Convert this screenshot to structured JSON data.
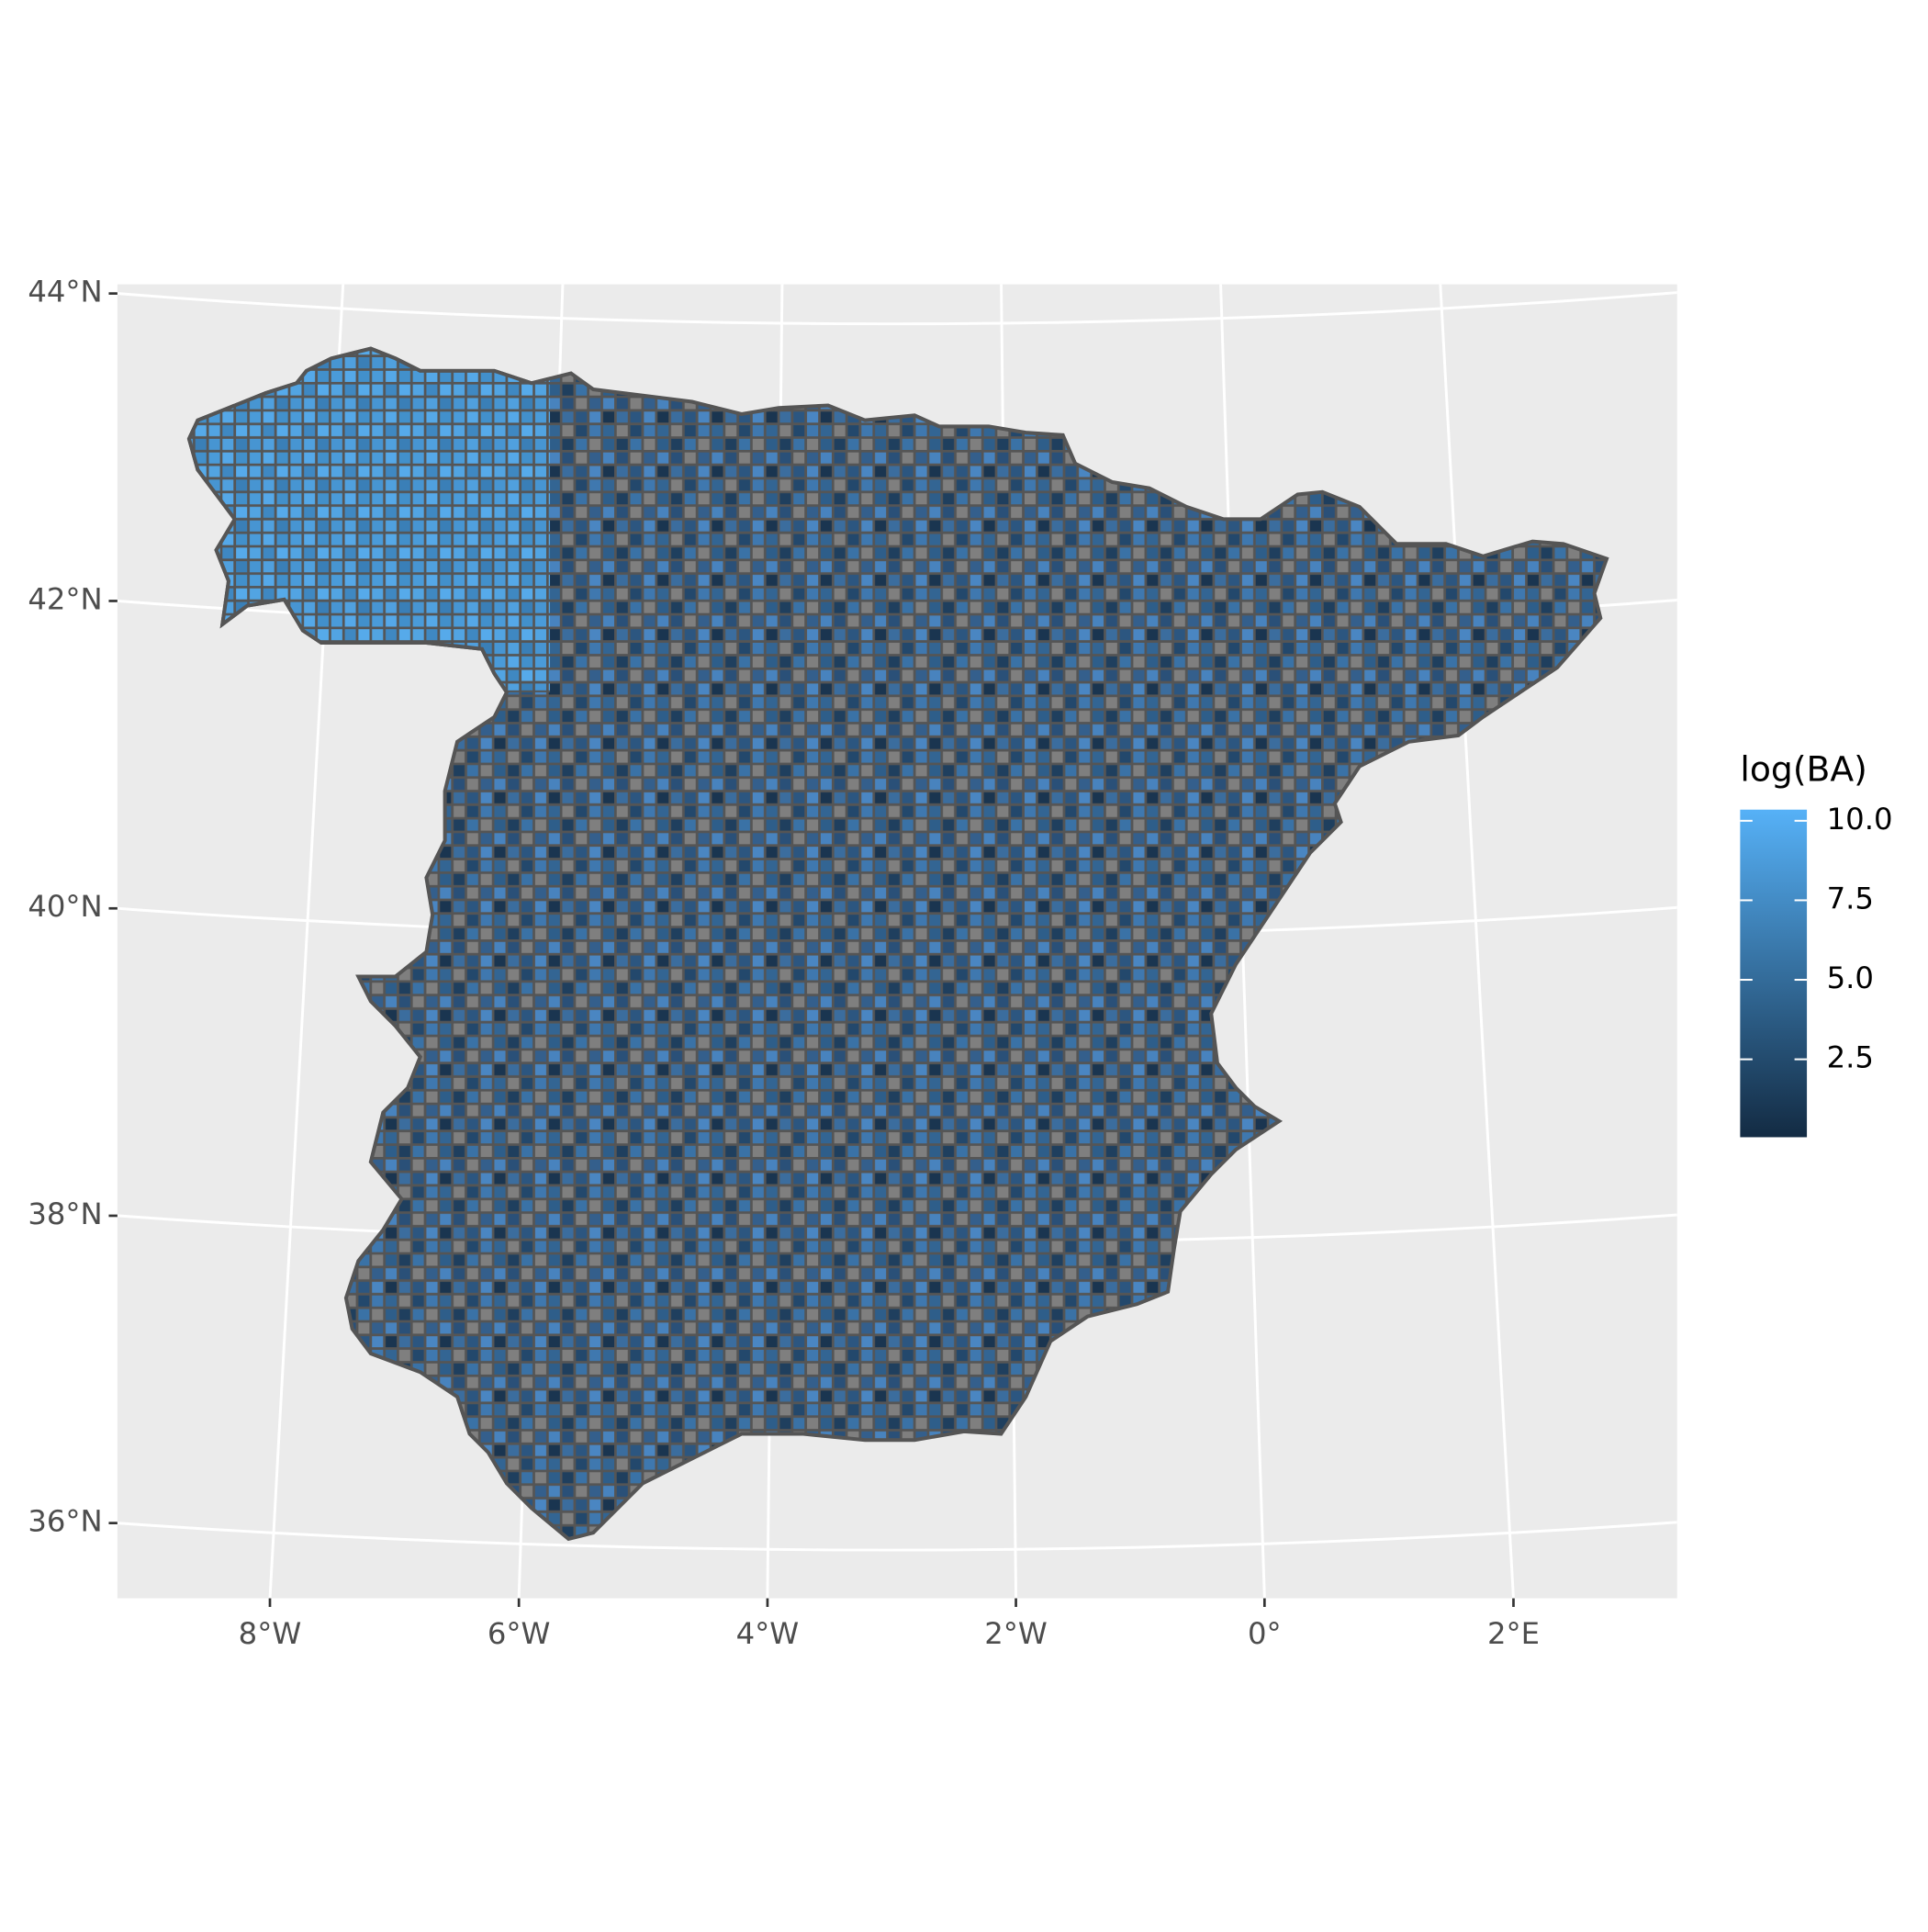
{
  "chart_data": {
    "type": "map",
    "xticks": [
      {
        "value": -8,
        "label": "8°W"
      },
      {
        "value": -6,
        "label": "6°W"
      },
      {
        "value": -4,
        "label": "4°W"
      },
      {
        "value": -2,
        "label": "2°W"
      },
      {
        "value": 0,
        "label": "0°"
      },
      {
        "value": 2,
        "label": "2°E"
      }
    ],
    "yticks": [
      {
        "value": 36,
        "label": "36°N"
      },
      {
        "value": 38,
        "label": "38°N"
      },
      {
        "value": 40,
        "label": "40°N"
      },
      {
        "value": 42,
        "label": "42°N"
      },
      {
        "value": 44,
        "label": "44°N"
      }
    ],
    "grid": true,
    "legend": {
      "title": "log(BA)",
      "limits": [
        0.05,
        10.35
      ],
      "ticks": [
        2.5,
        {
          "value": 5,
          "label": "5.0"
        },
        7.5,
        {
          "value": 10,
          "label": "10.0"
        }
      ],
      "low_color": "#132B43",
      "high_color": "#56B1F7"
    }
  }
}
